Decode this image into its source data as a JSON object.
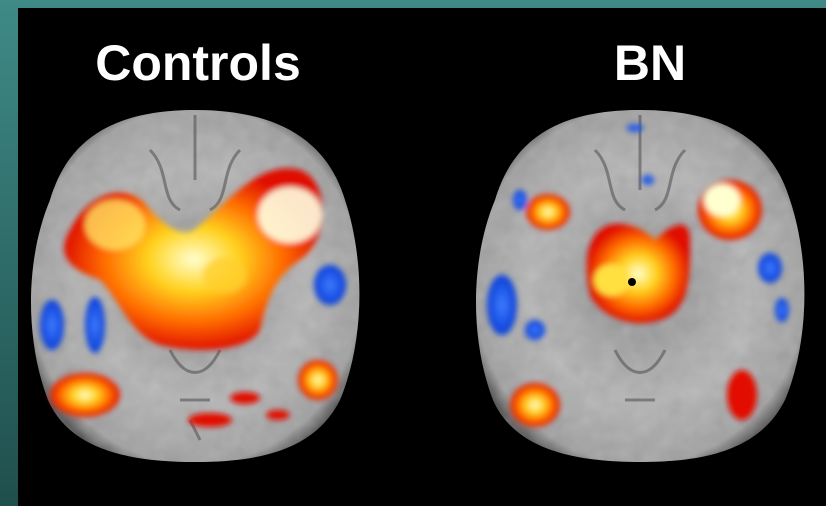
{
  "panels": [
    {
      "label": "Controls"
    },
    {
      "label": "BN"
    }
  ]
}
